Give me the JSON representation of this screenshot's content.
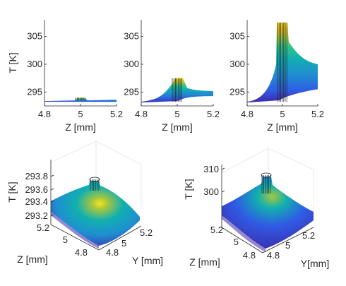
{
  "chart_data": [
    {
      "type": "surface-side-view",
      "panel": "top-left",
      "xlabel": "Z [mm]",
      "ylabel": "T [K]",
      "xlim": [
        4.8,
        5.2
      ],
      "ylim": [
        292.5,
        308
      ],
      "xticks": [
        "4.8",
        "5",
        "5.2"
      ],
      "yticks": [
        "295",
        "300",
        "305"
      ],
      "base_temperature": 293.5,
      "peak_temperature": 294.0,
      "peak_at_z": 5.0
    },
    {
      "type": "surface-side-view",
      "panel": "top-middle",
      "xlabel": "Z [mm]",
      "ylabel": "",
      "xlim": [
        4.8,
        5.2
      ],
      "ylim": [
        292.5,
        308
      ],
      "xticks": [
        "4.8",
        "5",
        "5.2"
      ],
      "yticks": [
        "295",
        "300",
        "305"
      ],
      "base_temperature": 293.5,
      "peak_temperature": 297.5,
      "peak_at_z": 5.0
    },
    {
      "type": "surface-side-view",
      "panel": "top-right",
      "xlabel": "Z [mm]",
      "ylabel": "",
      "xlim": [
        4.8,
        5.2
      ],
      "ylim": [
        292.5,
        308
      ],
      "xticks": [
        "4.8",
        "5",
        "5.2"
      ],
      "yticks": [
        "295",
        "300",
        "305"
      ],
      "base_temperature": 293.5,
      "peak_temperature": 307.5,
      "peak_at_z": 5.0
    },
    {
      "type": "surface-3d",
      "panel": "bottom-left",
      "zlabel": "T [K]",
      "xlabel": "Z [mm]",
      "ylabel": "Y [mm]",
      "zticks": [
        "293.2",
        "293.4",
        "293.6",
        "293.8"
      ],
      "xticks": [
        "4.8",
        "5",
        "5.2"
      ],
      "yticks": [
        "4.8",
        "5",
        "5.2"
      ],
      "zlim": [
        293.2,
        293.9
      ],
      "peak_temperature": 293.85
    },
    {
      "type": "surface-3d",
      "panel": "bottom-right",
      "zlabel": "T [K]",
      "xlabel": "Z [mm]",
      "ylabel": "Y[mm]",
      "zticks": [
        "300",
        "310"
      ],
      "xticks": [
        "4.8",
        "5",
        "5.2"
      ],
      "yticks": [
        "4.8",
        "5",
        "5.2"
      ],
      "zlim": [
        293,
        310
      ],
      "peak_temperature": 308
    }
  ],
  "colors": {
    "axis": "#262626",
    "gridline": "#e6e6e6",
    "colormap": [
      "#3e26a8",
      "#2f5ce4",
      "#1f8ed0",
      "#11b0b0",
      "#35c485",
      "#a5c63e",
      "#f0c01f",
      "#f9e51f"
    ]
  }
}
